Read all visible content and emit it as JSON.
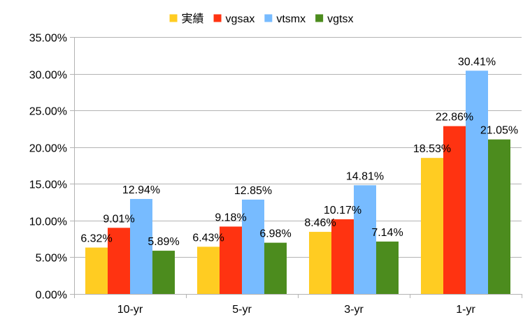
{
  "chart_data": {
    "type": "bar",
    "categories": [
      "10-yr",
      "5-yr",
      "3-yr",
      "1-yr"
    ],
    "series": [
      {
        "name": "実績",
        "color": "#FFCC22",
        "values": [
          6.32,
          6.43,
          8.46,
          18.53
        ]
      },
      {
        "name": "vgsax",
        "color": "#FF3311",
        "values": [
          9.01,
          9.18,
          10.17,
          22.86
        ]
      },
      {
        "name": "vtsmx",
        "color": "#77BBFF",
        "values": [
          12.94,
          12.85,
          14.81,
          30.41
        ]
      },
      {
        "name": "vgtsx",
        "color": "#4C8C1E",
        "values": [
          5.89,
          6.98,
          7.14,
          21.05
        ]
      }
    ],
    "data_labels": [
      [
        "6.32%",
        "6.43%",
        "8.46%",
        "18.53%"
      ],
      [
        "9.01%",
        "9.18%",
        "10.17%",
        "22.86%"
      ],
      [
        "12.94%",
        "12.85%",
        "14.81%",
        "30.41%"
      ],
      [
        "5.89%",
        "6.98%",
        "7.14%",
        "21.05%"
      ]
    ],
    "yticks": [
      0,
      5,
      10,
      15,
      20,
      25,
      30,
      35
    ],
    "ytick_labels": [
      "0.00%",
      "5.00%",
      "10.00%",
      "15.00%",
      "20.00%",
      "25.00%",
      "30.00%",
      "35.00%"
    ],
    "ylim": [
      0,
      35
    ],
    "grid": true,
    "legend_position": "top",
    "title": "",
    "xlabel": "",
    "ylabel": ""
  }
}
